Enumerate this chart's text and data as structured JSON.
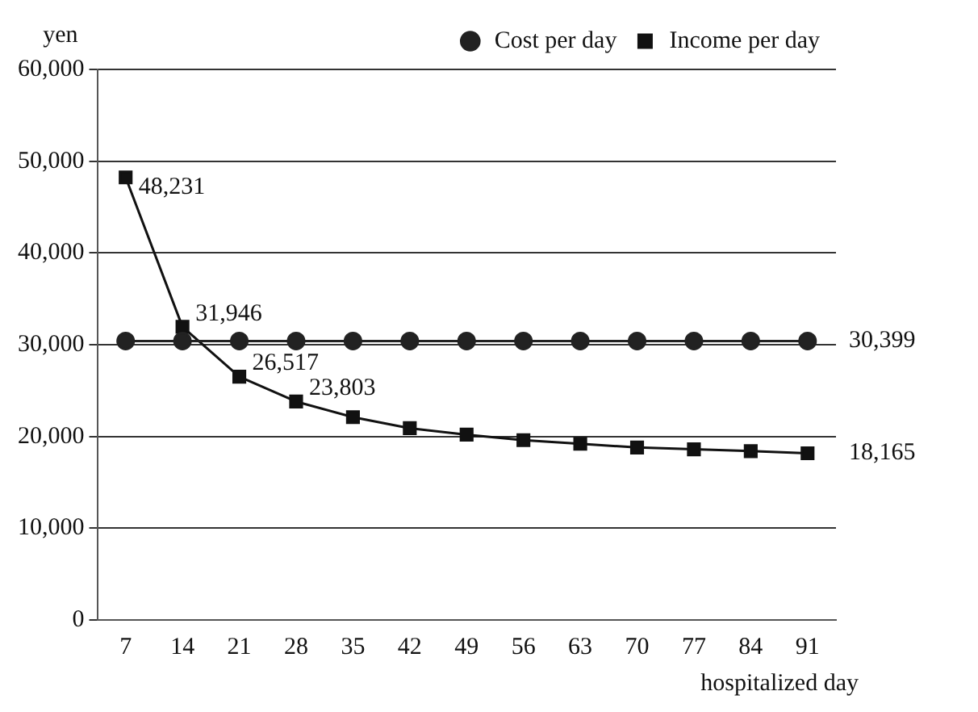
{
  "chart_data": {
    "type": "line",
    "ylabel": "yen",
    "xlabel": "hospitalized day",
    "categories": [
      "7",
      "14",
      "21",
      "28",
      "35",
      "42",
      "49",
      "56",
      "63",
      "70",
      "77",
      "84",
      "91"
    ],
    "series": [
      {
        "name": "Cost per day",
        "color": "#222222",
        "marker": "circle",
        "values": [
          30399,
          30399,
          30399,
          30399,
          30399,
          30399,
          30399,
          30399,
          30399,
          30399,
          30399,
          30399,
          30399
        ],
        "value_labels": [
          null,
          null,
          null,
          null,
          null,
          null,
          null,
          null,
          null,
          null,
          null,
          null,
          "30,399"
        ]
      },
      {
        "name": "Income per day",
        "color": "#111111",
        "marker": "square",
        "values": [
          48231,
          31946,
          26517,
          23803,
          22100,
          20900,
          20200,
          19600,
          19200,
          18800,
          18600,
          18400,
          18165
        ],
        "value_labels": [
          "48,231",
          "31,946",
          "26,517",
          "23,803",
          null,
          null,
          null,
          null,
          null,
          null,
          null,
          null,
          "18,165"
        ]
      }
    ],
    "ylim": [
      0,
      60000
    ],
    "yticks": [
      0,
      {
        "value": 10000,
        "label": "10,000"
      },
      {
        "value": 20000,
        "label": "20,000"
      },
      {
        "value": 30000,
        "label": "30,000"
      },
      {
        "value": 40000,
        "label": "40,000"
      },
      {
        "value": 50000,
        "label": "50,000"
      },
      {
        "value": 60000,
        "label": "60,000"
      }
    ],
    "grid": "y",
    "legend": "top"
  }
}
